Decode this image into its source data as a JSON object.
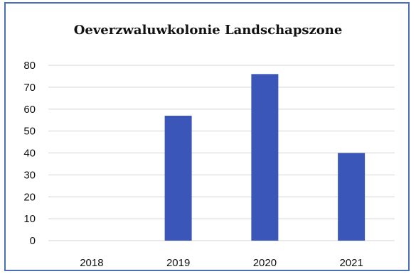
{
  "chart_data": {
    "type": "bar",
    "title": "Oeverzwaluwkolonie Landschapszone",
    "xlabel": "",
    "ylabel": "",
    "categories": [
      "2018",
      "2019",
      "2020",
      "2021"
    ],
    "values": [
      0,
      57,
      76,
      40
    ],
    "ylim": [
      0,
      80
    ],
    "yticks": [
      "0",
      "10",
      "20",
      "30",
      "40",
      "50",
      "60",
      "70",
      "80"
    ],
    "grid": true,
    "legend": "none",
    "bar_color": "#3a56b8",
    "grid_color": "#d4d4d4",
    "frame_color": "#4a6fb5"
  }
}
